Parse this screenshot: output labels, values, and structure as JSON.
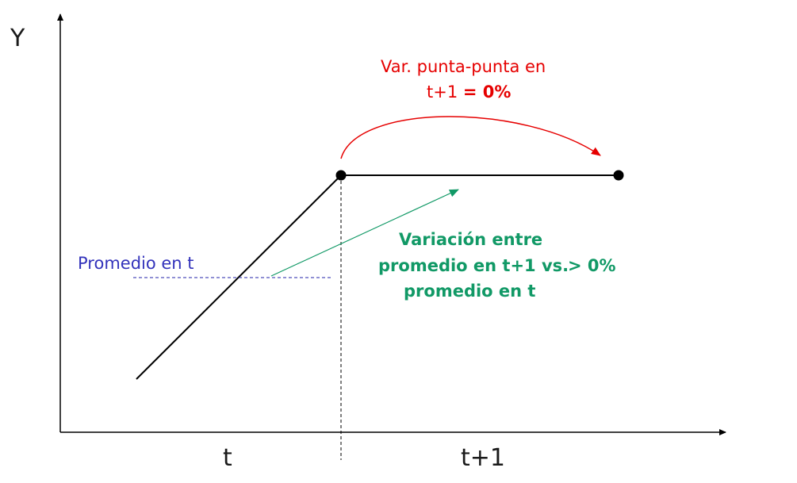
{
  "axes": {
    "y_label": "Y",
    "x_tick_labels": [
      "t",
      "t+1"
    ]
  },
  "annotations": {
    "average_t": "Promedio en t",
    "point_to_point_line1": "Var. punta-punta en",
    "point_to_point_line2_prefix": "t+1 ",
    "point_to_point_line2_value": "= 0%",
    "average_variation_line1": "Variación entre",
    "average_variation_line2": "promedio en t+1 vs.",
    "average_variation_line3": "promedio en t",
    "average_variation_value": "> 0%"
  },
  "colors": {
    "axes": "#000000",
    "series": "#000000",
    "average_line": "#2222aa",
    "point_to_point": "#e60000",
    "average_variation": "#119966"
  }
}
